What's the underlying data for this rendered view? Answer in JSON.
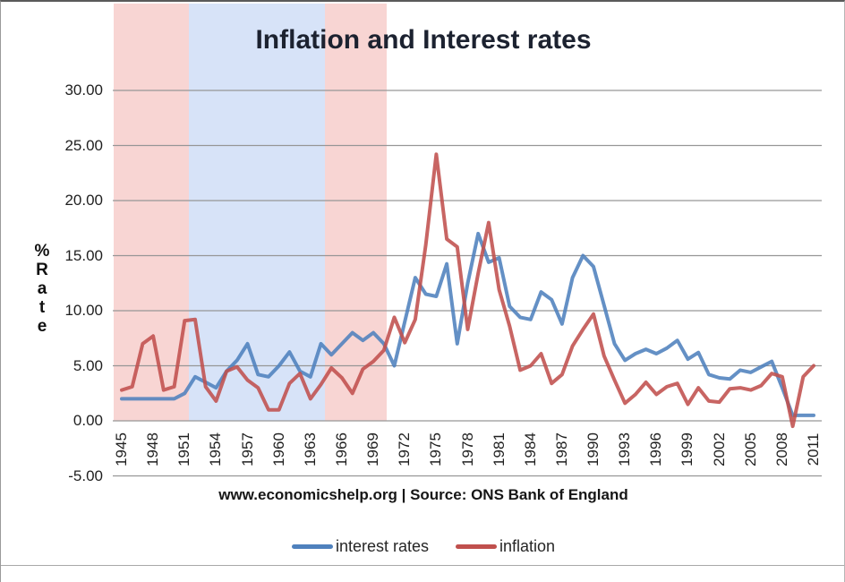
{
  "title": "Inflation and Interest rates",
  "footer": "www.economicshelp.org | Source: ONS Bank of England",
  "y_axis_label": "% Rate",
  "colors": {
    "interest_rates_line": "#4F81BD",
    "inflation_line": "#C0504D",
    "pink_band": "#F8D5D3",
    "blue_band": "#D7E3F8",
    "gridline": "#969696",
    "text": "#1f1f1f"
  },
  "chart_data": {
    "type": "line",
    "title": "Inflation and Interest rates",
    "xlabel": "",
    "ylabel": "% Rate",
    "ylim": [
      -5,
      30
    ],
    "grid": true,
    "legend_position": "bottom",
    "x_tick_labels": [
      "1945",
      "1948",
      "1951",
      "1954",
      "1957",
      "1960",
      "1963",
      "1966",
      "1969",
      "1972",
      "1975",
      "1978",
      "1981",
      "1984",
      "1987",
      "1990",
      "1993",
      "1996",
      "1999",
      "2002",
      "2005",
      "2008",
      "2011"
    ],
    "y_ticks": [
      {
        "label": "30.00",
        "value": 30
      },
      {
        "label": "25.00",
        "value": 25
      },
      {
        "label": "20.00",
        "value": 20
      },
      {
        "label": "15.00",
        "value": 15
      },
      {
        "label": "10.00",
        "value": 10
      },
      {
        "label": "5.00",
        "value": 5
      },
      {
        "label": "0.00",
        "value": 0
      },
      {
        "label": "-5.00",
        "value": -5
      }
    ],
    "x_start_year": 1945,
    "x_end_year": 2011,
    "series": [
      {
        "name": "interest rates",
        "color": "#4F81BD",
        "values": [
          2.0,
          2.0,
          2.0,
          2.0,
          2.0,
          2.0,
          2.5,
          4.0,
          3.5,
          3.0,
          4.5,
          5.5,
          7.0,
          4.2,
          4.0,
          5.0,
          6.25,
          4.5,
          4.0,
          7.0,
          6.0,
          7.0,
          8.0,
          7.3,
          8.0,
          7.0,
          5.0,
          9.0,
          13.0,
          11.5,
          11.3,
          14.25,
          7.0,
          12.5,
          17.0,
          14.4,
          14.8,
          10.4,
          9.4,
          9.2,
          11.7,
          11.0,
          8.8,
          13.0,
          15.0,
          14.0,
          10.5,
          7.0,
          5.5,
          6.1,
          6.5,
          6.1,
          6.6,
          7.3,
          5.6,
          6.2,
          4.2,
          3.9,
          3.8,
          4.6,
          4.4,
          4.9,
          5.4,
          3.0,
          0.5,
          0.5,
          0.5
        ]
      },
      {
        "name": "inflation",
        "color": "#C0504D",
        "values": [
          2.8,
          3.1,
          7.0,
          7.7,
          2.8,
          3.1,
          9.1,
          9.2,
          3.1,
          1.8,
          4.5,
          4.9,
          3.7,
          3.0,
          1.0,
          1.0,
          3.4,
          4.3,
          2.0,
          3.3,
          4.8,
          3.9,
          2.5,
          4.7,
          5.4,
          6.4,
          9.4,
          7.1,
          9.2,
          16.0,
          24.2,
          16.5,
          15.8,
          8.3,
          13.4,
          18.0,
          11.9,
          8.6,
          4.6,
          5.0,
          6.1,
          3.4,
          4.2,
          6.8,
          8.3,
          9.7,
          5.9,
          3.7,
          1.6,
          2.4,
          3.5,
          2.4,
          3.1,
          3.4,
          1.5,
          3.0,
          1.8,
          1.7,
          2.9,
          3.0,
          2.8,
          3.2,
          4.3,
          4.0,
          -0.5,
          4.0,
          5.0
        ]
      }
    ],
    "shaded_bands": [
      {
        "start_year": 1944.2,
        "end_year": 1951.4,
        "color": "#F8D5D3"
      },
      {
        "start_year": 1951.4,
        "end_year": 1964.4,
        "color": "#D7E3F8"
      },
      {
        "start_year": 1964.4,
        "end_year": 1970.3,
        "color": "#F8D5D3"
      }
    ]
  }
}
